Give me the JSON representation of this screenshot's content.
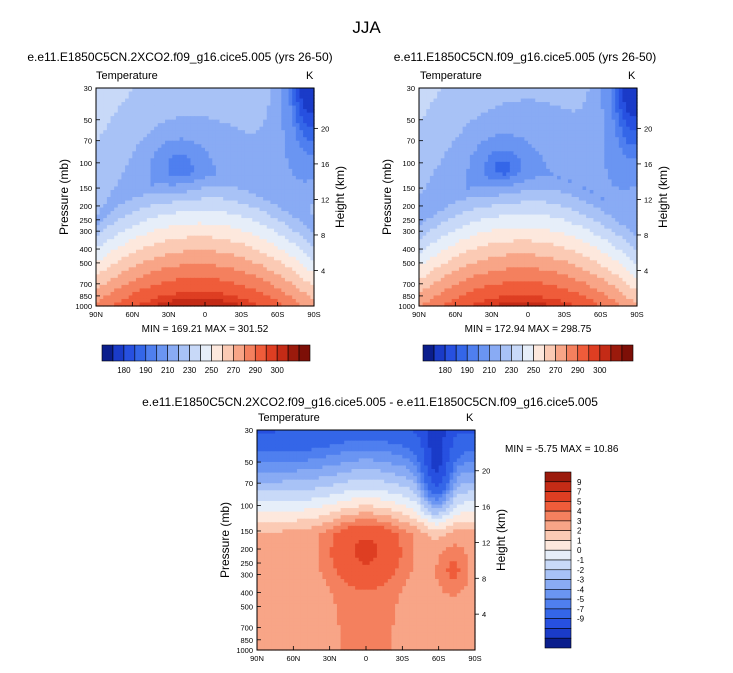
{
  "title": "JJA",
  "chart_data": [
    {
      "type": "heatmap",
      "title": "e.e11.E1850C5CN.2XCO2.f09_g16.cice5.005 (yrs 26-50)",
      "variable": "Temperature",
      "units": "K",
      "stats": "MIN = 169.21   MAX = 301.52",
      "min": 169.21,
      "max": 301.52,
      "x_ticks": [
        "90N",
        "60N",
        "30N",
        "0",
        "30S",
        "60S",
        "90S"
      ],
      "xlim": [
        90,
        -90
      ],
      "ylabel": "Pressure (mb)",
      "y_ticks": [
        "30",
        "50",
        "70",
        "100",
        "150",
        "200",
        "250",
        "300",
        "400",
        "500",
        "700",
        "850",
        "1000"
      ],
      "ylim": [
        30,
        1000
      ],
      "y_scale": "log",
      "y2label": "Height (km)",
      "y2_ticks": [
        "20",
        "16",
        "12",
        "8",
        "4"
      ],
      "colorbar_labels": [
        "180",
        "190",
        "210",
        "230",
        "250",
        "270",
        "290",
        "300"
      ],
      "colorbar_levels": [
        175,
        180,
        185,
        190,
        200,
        210,
        220,
        230,
        240,
        250,
        260,
        270,
        280,
        290,
        295,
        300
      ],
      "field": {
        "warm_max": 301.5,
        "cold_core": 190,
        "cold_pole": 172
      }
    },
    {
      "type": "heatmap",
      "title": "e.e11.E1850C5CN.f09_g16.cice5.005 (yrs 26-50)",
      "variable": "Temperature",
      "units": "K",
      "stats": "MIN = 172.94   MAX = 298.75",
      "min": 172.94,
      "max": 298.75,
      "x_ticks": [
        "90N",
        "60N",
        "30N",
        "0",
        "30S",
        "60S",
        "90S"
      ],
      "xlim": [
        90,
        -90
      ],
      "ylabel": "Pressure (mb)",
      "y_ticks": [
        "30",
        "50",
        "70",
        "100",
        "150",
        "200",
        "250",
        "300",
        "400",
        "500",
        "700",
        "850",
        "1000"
      ],
      "ylim": [
        30,
        1000
      ],
      "y_scale": "log",
      "y2label": "Height (km)",
      "y2_ticks": [
        "20",
        "16",
        "12",
        "8",
        "4"
      ],
      "colorbar_labels": [
        "180",
        "190",
        "210",
        "230",
        "250",
        "270",
        "290",
        "300"
      ],
      "colorbar_levels": [
        175,
        180,
        185,
        190,
        200,
        210,
        220,
        230,
        240,
        250,
        260,
        270,
        280,
        290,
        295,
        300
      ],
      "field": {
        "warm_max": 298.7,
        "cold_core": 191,
        "cold_pole": 174
      }
    },
    {
      "type": "heatmap",
      "title": "e.e11.E1850C5CN.2XCO2.f09_g16.cice5.005 - e.e11.E1850C5CN.f09_g16.cice5.005",
      "variable": "Temperature",
      "units": "K",
      "stats": "MIN =  -5.75   MAX =  10.86",
      "min": -5.75,
      "max": 10.86,
      "x_ticks": [
        "90N",
        "60N",
        "30N",
        "0",
        "30S",
        "60S",
        "90S"
      ],
      "xlim": [
        90,
        -90
      ],
      "ylabel": "Pressure (mb)",
      "y_ticks": [
        "30",
        "50",
        "70",
        "100",
        "150",
        "200",
        "250",
        "300",
        "400",
        "500",
        "700",
        "850",
        "1000"
      ],
      "ylim": [
        30,
        1000
      ],
      "y_scale": "log",
      "y2label": "Height (km)",
      "y2_ticks": [
        "20",
        "16",
        "12",
        "8",
        "4"
      ],
      "colorbar_labels": [
        "9",
        "7",
        "5",
        "4",
        "3",
        "2",
        "1",
        "0",
        "-1",
        "-2",
        "-3",
        "-4",
        "-5",
        "-7",
        "-9"
      ],
      "colorbar_levels": [
        9,
        7,
        5,
        4,
        3,
        2,
        1,
        0,
        -1,
        -2,
        -3,
        -4,
        -5,
        -7,
        -9
      ]
    }
  ],
  "palette": {
    "temp": [
      "#0b1e8c",
      "#1a3bc8",
      "#2750e0",
      "#3466e8",
      "#4f7fef",
      "#6a95f2",
      "#89abf4",
      "#a8c2f6",
      "#c8d9f8",
      "#e6eef9",
      "#fde8dd",
      "#fbcab4",
      "#f8a587",
      "#f4805e",
      "#ef5c3a",
      "#de3e22",
      "#c42b16",
      "#9b1a0c",
      "#7d0f07"
    ],
    "diff": [
      "#0b1e8c",
      "#1a3bc8",
      "#2750e0",
      "#3466e8",
      "#4f7fef",
      "#6a95f2",
      "#89abf4",
      "#a8c2f6",
      "#c8d9f8",
      "#e6eef9",
      "#fde8dd",
      "#fbcab4",
      "#f8a587",
      "#f4805e",
      "#ef5c3a",
      "#de3e22",
      "#c42b16",
      "#9b1a0c"
    ]
  }
}
